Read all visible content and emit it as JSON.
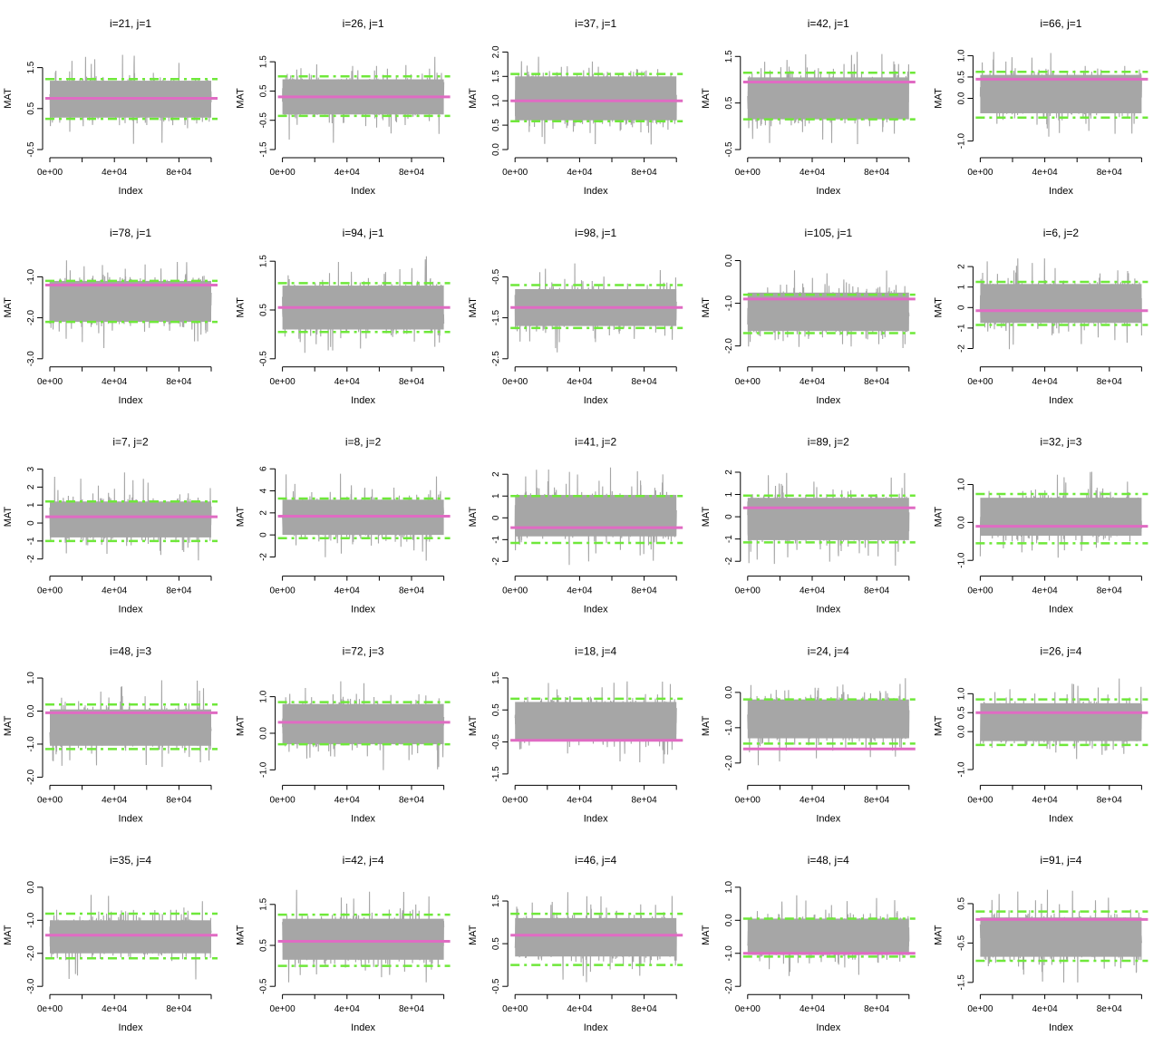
{
  "colors": {
    "trace": "#a6a6a6",
    "mean": "#e06bc3",
    "bound": "#6fe83a",
    "axis": "#000000"
  },
  "chart_data": [
    {
      "type": "line",
      "title": "i=21, j=1",
      "xlabel": "Index",
      "ylabel": "MAT",
      "xlim": [
        0,
        100000
      ],
      "xticks": [
        0,
        40000,
        80000
      ],
      "xtick_labels": [
        "0e+00",
        "4e+04",
        "8e+04"
      ],
      "ylim": [
        -0.5,
        2.0
      ],
      "yticks": [
        -0.5,
        0.5,
        1.5
      ],
      "ytick_labels": [
        "-0.5",
        "0.5",
        "1.5"
      ],
      "trace": {
        "center": 0.73,
        "spread": 0.45,
        "min": -0.4,
        "max": 1.9
      },
      "mean": 0.75,
      "lower": 0.25,
      "upper": 1.22
    },
    {
      "type": "line",
      "title": "i=26, j=1",
      "xlabel": "Index",
      "ylabel": "MAT",
      "xlim": [
        0,
        100000
      ],
      "xticks": [
        0,
        40000,
        80000
      ],
      "xtick_labels": [
        "0e+00",
        "4e+04",
        "8e+04"
      ],
      "ylim": [
        -1.5,
        2.0
      ],
      "yticks": [
        -1.5,
        -0.5,
        0.5,
        1.5
      ],
      "ytick_labels": [
        "-1.5",
        "-0.5",
        "0.5",
        "1.5"
      ],
      "trace": {
        "center": 0.3,
        "spread": 0.6,
        "min": -1.3,
        "max": 1.9
      },
      "mean": 0.3,
      "lower": -0.35,
      "upper": 1.0
    },
    {
      "type": "line",
      "title": "i=37, j=1",
      "xlabel": "Index",
      "ylabel": "MAT",
      "xlim": [
        0,
        100000
      ],
      "xticks": [
        0,
        40000,
        80000
      ],
      "xtick_labels": [
        "0e+00",
        "4e+04",
        "8e+04"
      ],
      "ylim": [
        0.0,
        2.1
      ],
      "yticks": [
        0.0,
        0.5,
        1.0,
        1.5,
        2.0
      ],
      "ytick_labels": [
        "0.0",
        "0.5",
        "1.0",
        "1.5",
        "2.0"
      ],
      "trace": {
        "center": 1.05,
        "spread": 0.45,
        "min": 0.05,
        "max": 2.1
      },
      "mean": 1.0,
      "lower": 0.58,
      "upper": 1.55
    },
    {
      "type": "line",
      "title": "i=42, j=1",
      "xlabel": "Index",
      "ylabel": "MAT",
      "xlim": [
        0,
        100000
      ],
      "xticks": [
        0,
        40000,
        80000
      ],
      "xtick_labels": [
        "0e+00",
        "4e+04",
        "8e+04"
      ],
      "ylim": [
        -0.5,
        1.7
      ],
      "yticks": [
        -0.5,
        0.5,
        1.5
      ],
      "ytick_labels": [
        "-0.5",
        "0.5",
        "1.5"
      ],
      "trace": {
        "center": 0.6,
        "spread": 0.45,
        "min": -0.4,
        "max": 1.6
      },
      "mean": 0.95,
      "lower": 0.15,
      "upper": 1.15
    },
    {
      "type": "line",
      "title": "i=66, j=1",
      "xlabel": "Index",
      "ylabel": "MAT",
      "xlim": [
        0,
        100000
      ],
      "xticks": [
        0,
        40000,
        80000
      ],
      "xtick_labels": [
        "0e+00",
        "4e+04",
        "8e+04"
      ],
      "ylim": [
        -1.2,
        1.2
      ],
      "yticks": [
        -1.0,
        0.0,
        0.5,
        1.0
      ],
      "ytick_labels": [
        "-1.0",
        "0.0",
        "0.5",
        "1.0"
      ],
      "trace": {
        "center": 0.1,
        "spread": 0.45,
        "min": -1.0,
        "max": 1.1
      },
      "mean": 0.45,
      "lower": -0.45,
      "upper": 0.62
    },
    {
      "type": "line",
      "title": "i=78, j=1",
      "xlabel": "Index",
      "ylabel": "MAT",
      "xlim": [
        0,
        100000
      ],
      "xticks": [
        0,
        40000,
        80000
      ],
      "xtick_labels": [
        "0e+00",
        "4e+04",
        "8e+04"
      ],
      "ylim": [
        -3.0,
        -0.5
      ],
      "yticks": [
        -3.0,
        -2.0,
        -1.0
      ],
      "ytick_labels": [
        "-3.0",
        "-2.0",
        "-1.0"
      ],
      "trace": {
        "center": -1.6,
        "spread": 0.5,
        "min": -2.8,
        "max": -0.6
      },
      "mean": -1.2,
      "lower": -2.1,
      "upper": -1.1
    },
    {
      "type": "line",
      "title": "i=94, j=1",
      "xlabel": "Index",
      "ylabel": "MAT",
      "xlim": [
        0,
        100000
      ],
      "xticks": [
        0,
        40000,
        80000
      ],
      "xtick_labels": [
        "0e+00",
        "4e+04",
        "8e+04"
      ],
      "ylim": [
        -0.5,
        1.6
      ],
      "yticks": [
        -0.5,
        0.5,
        1.5
      ],
      "ytick_labels": [
        "-0.5",
        "0.5",
        "1.5"
      ],
      "trace": {
        "center": 0.55,
        "spread": 0.45,
        "min": -0.45,
        "max": 1.6
      },
      "mean": 0.55,
      "lower": 0.05,
      "upper": 1.05
    },
    {
      "type": "line",
      "title": "i=98, j=1",
      "xlabel": "Index",
      "ylabel": "MAT",
      "xlim": [
        0,
        100000
      ],
      "xticks": [
        0,
        40000,
        80000
      ],
      "xtick_labels": [
        "0e+00",
        "4e+04",
        "8e+04"
      ],
      "ylim": [
        -2.5,
        0.0
      ],
      "yticks": [
        -2.5,
        -1.5,
        -0.5
      ],
      "ytick_labels": [
        "-2.5",
        "-1.5",
        "-0.5"
      ],
      "trace": {
        "center": -1.25,
        "spread": 0.45,
        "min": -2.4,
        "max": -0.1
      },
      "mean": -1.25,
      "lower": -1.75,
      "upper": -0.7
    },
    {
      "type": "line",
      "title": "i=105, j=1",
      "xlabel": "Index",
      "ylabel": "MAT",
      "xlim": [
        0,
        100000
      ],
      "xticks": [
        0,
        40000,
        80000
      ],
      "xtick_labels": [
        "0e+00",
        "4e+04",
        "8e+04"
      ],
      "ylim": [
        -2.3,
        0.1
      ],
      "yticks": [
        -2.0,
        -1.0,
        0.0
      ],
      "ytick_labels": [
        "-2.0",
        "-1.0",
        "0.0"
      ],
      "trace": {
        "center": -1.2,
        "spread": 0.45,
        "min": -2.2,
        "max": -0.2
      },
      "mean": -0.9,
      "lower": -1.7,
      "upper": -0.8
    },
    {
      "type": "line",
      "title": "i=6, j=2",
      "xlabel": "Index",
      "ylabel": "MAT",
      "xlim": [
        0,
        100000
      ],
      "xticks": [
        0,
        40000,
        80000
      ],
      "xtick_labels": [
        "0e+00",
        "4e+04",
        "8e+04"
      ],
      "ylim": [
        -2.5,
        2.5
      ],
      "yticks": [
        -2,
        -1,
        0,
        1,
        2
      ],
      "ytick_labels": [
        "-2",
        "-1",
        "0",
        "1",
        "2"
      ],
      "trace": {
        "center": 0.2,
        "spread": 0.95,
        "min": -2.2,
        "max": 2.4
      },
      "mean": -0.15,
      "lower": -0.85,
      "upper": 1.25
    },
    {
      "type": "line",
      "title": "i=7, j=2",
      "xlabel": "Index",
      "ylabel": "MAT",
      "xlim": [
        0,
        100000
      ],
      "xticks": [
        0,
        40000,
        80000
      ],
      "xtick_labels": [
        "0e+00",
        "4e+04",
        "8e+04"
      ],
      "ylim": [
        -2.5,
        3.2
      ],
      "yticks": [
        -2,
        -1,
        0,
        1,
        2,
        3
      ],
      "ytick_labels": [
        "-2",
        "-1",
        "0",
        "1",
        "2",
        "3"
      ],
      "trace": {
        "center": 0.2,
        "spread": 1.0,
        "min": -2.3,
        "max": 3.1
      },
      "mean": 0.35,
      "lower": -1.0,
      "upper": 1.2
    },
    {
      "type": "line",
      "title": "i=8, j=2",
      "xlabel": "Index",
      "ylabel": "MAT",
      "xlim": [
        0,
        100000
      ],
      "xticks": [
        0,
        40000,
        80000
      ],
      "xtick_labels": [
        "0e+00",
        "4e+04",
        "8e+04"
      ],
      "ylim": [
        -3.0,
        6.3
      ],
      "yticks": [
        -2,
        0,
        2,
        4,
        6
      ],
      "ytick_labels": [
        "-2",
        "0",
        "2",
        "4",
        "6"
      ],
      "trace": {
        "center": 1.6,
        "spread": 1.6,
        "min": -2.5,
        "max": 5.7
      },
      "mean": 1.7,
      "lower": -0.3,
      "upper": 3.3
    },
    {
      "type": "line",
      "title": "i=41, j=2",
      "xlabel": "Index",
      "ylabel": "MAT",
      "xlim": [
        0,
        100000
      ],
      "xticks": [
        0,
        40000,
        80000
      ],
      "xtick_labels": [
        "0e+00",
        "4e+04",
        "8e+04"
      ],
      "ylim": [
        -2.3,
        2.4
      ],
      "yticks": [
        -2,
        -1,
        0,
        1,
        2
      ],
      "ytick_labels": [
        "-2",
        "-1",
        "0",
        "1",
        "2"
      ],
      "trace": {
        "center": 0.1,
        "spread": 0.95,
        "min": -2.2,
        "max": 2.5
      },
      "mean": -0.45,
      "lower": -1.15,
      "upper": 1.0
    },
    {
      "type": "line",
      "title": "i=89, j=2",
      "xlabel": "Index",
      "ylabel": "MAT",
      "xlim": [
        0,
        100000
      ],
      "xticks": [
        0,
        40000,
        80000
      ],
      "xtick_labels": [
        "0e+00",
        "4e+04",
        "8e+04"
      ],
      "ylim": [
        -2.3,
        2.3
      ],
      "yticks": [
        -2,
        -1,
        0,
        1,
        2
      ],
      "ytick_labels": [
        "-2",
        "-1",
        "0",
        "1",
        "2"
      ],
      "trace": {
        "center": -0.1,
        "spread": 0.95,
        "min": -2.2,
        "max": 2.1
      },
      "mean": 0.4,
      "lower": -1.15,
      "upper": 0.95
    },
    {
      "type": "line",
      "title": "i=32, j=3",
      "xlabel": "Index",
      "ylabel": "MAT",
      "xlim": [
        0,
        100000
      ],
      "xticks": [
        0,
        40000,
        80000
      ],
      "xtick_labels": [
        "0e+00",
        "4e+04",
        "8e+04"
      ],
      "ylim": [
        -1.2,
        1.5
      ],
      "yticks": [
        -1.0,
        0.0,
        1.0
      ],
      "ytick_labels": [
        "-1.0",
        "0.0",
        "1.0"
      ],
      "trace": {
        "center": 0.15,
        "spread": 0.5,
        "min": -1.1,
        "max": 1.4
      },
      "mean": -0.1,
      "lower": -0.55,
      "upper": 0.75
    },
    {
      "type": "line",
      "title": "i=48, j=3",
      "xlabel": "Index",
      "ylabel": "MAT",
      "xlim": [
        0,
        100000
      ],
      "xticks": [
        0,
        40000,
        80000
      ],
      "xtick_labels": [
        "0e+00",
        "4e+04",
        "8e+04"
      ],
      "ylim": [
        -2.0,
        1.1
      ],
      "yticks": [
        -2.0,
        -1.0,
        0.0,
        1.0
      ],
      "ytick_labels": [
        "-2.0",
        "-1.0",
        "0.0",
        "1.0"
      ],
      "trace": {
        "center": -0.5,
        "spread": 0.55,
        "min": -1.85,
        "max": 1.0
      },
      "mean": -0.05,
      "lower": -1.15,
      "upper": 0.2
    },
    {
      "type": "line",
      "title": "i=72, j=3",
      "xlabel": "Index",
      "ylabel": "MAT",
      "xlim": [
        0,
        100000
      ],
      "xticks": [
        0,
        40000,
        80000
      ],
      "xtick_labels": [
        "0e+00",
        "4e+04",
        "8e+04"
      ],
      "ylim": [
        -1.2,
        1.6
      ],
      "yticks": [
        -1.0,
        0.0,
        1.0
      ],
      "ytick_labels": [
        "-1.0",
        "0.0",
        "1.0"
      ],
      "trace": {
        "center": 0.25,
        "spread": 0.55,
        "min": -1.1,
        "max": 1.5
      },
      "mean": 0.3,
      "lower": -0.3,
      "upper": 0.85
    },
    {
      "type": "line",
      "title": "i=18, j=4",
      "xlabel": "Index",
      "ylabel": "MAT",
      "xlim": [
        0,
        100000
      ],
      "xticks": [
        0,
        40000,
        80000
      ],
      "xtick_labels": [
        "0e+00",
        "4e+04",
        "8e+04"
      ],
      "ylim": [
        -1.6,
        1.6
      ],
      "yticks": [
        -1.5,
        -0.5,
        0.5,
        1.5
      ],
      "ytick_labels": [
        "-1.5",
        "-0.5",
        "0.5",
        "1.5"
      ],
      "trace": {
        "center": 0.15,
        "spread": 0.6,
        "min": -1.4,
        "max": 1.5
      },
      "mean": -0.45,
      "lower": -0.45,
      "upper": 0.85
    },
    {
      "type": "line",
      "title": "i=24, j=4",
      "xlabel": "Index",
      "ylabel": "MAT",
      "xlim": [
        0,
        100000
      ],
      "xticks": [
        0,
        40000,
        80000
      ],
      "xtick_labels": [
        "0e+00",
        "4e+04",
        "8e+04"
      ],
      "ylim": [
        -2.4,
        0.5
      ],
      "yticks": [
        -2.0,
        -1.0,
        0.0
      ],
      "ytick_labels": [
        "-2.0",
        "-1.0",
        "0.0"
      ],
      "trace": {
        "center": -0.75,
        "spread": 0.55,
        "min": -2.2,
        "max": 0.4
      },
      "mean": -1.6,
      "lower": -1.45,
      "upper": -0.2
    },
    {
      "type": "line",
      "title": "i=26, j=4",
      "xlabel": "Index",
      "ylabel": "MAT",
      "xlim": [
        0,
        100000
      ],
      "xticks": [
        0,
        40000,
        80000
      ],
      "xtick_labels": [
        "0e+00",
        "4e+04",
        "8e+04"
      ],
      "ylim": [
        -1.2,
        1.5
      ],
      "yticks": [
        -1.0,
        0.0,
        0.5,
        1.0
      ],
      "ytick_labels": [
        "-1.0",
        "0.0",
        "0.5",
        "1.0"
      ],
      "trace": {
        "center": 0.25,
        "spread": 0.5,
        "min": -1.1,
        "max": 1.4
      },
      "mean": 0.5,
      "lower": -0.35,
      "upper": 0.85
    },
    {
      "type": "line",
      "title": "i=35, j=4",
      "xlabel": "Index",
      "ylabel": "MAT",
      "xlim": [
        0,
        100000
      ],
      "xticks": [
        0,
        40000,
        80000
      ],
      "xtick_labels": [
        "0e+00",
        "4e+04",
        "8e+04"
      ],
      "ylim": [
        -3.0,
        0.1
      ],
      "yticks": [
        -3.0,
        -2.0,
        -1.0,
        0.0
      ],
      "ytick_labels": [
        "-3.0",
        "-2.0",
        "-1.0",
        "0.0"
      ],
      "trace": {
        "center": -1.5,
        "spread": 0.5,
        "min": -2.8,
        "max": 0.0
      },
      "mean": -1.45,
      "lower": -2.15,
      "upper": -0.8
    },
    {
      "type": "line",
      "title": "i=42, j=4",
      "xlabel": "Index",
      "ylabel": "MAT",
      "xlim": [
        0,
        100000
      ],
      "xticks": [
        0,
        40000,
        80000
      ],
      "xtick_labels": [
        "0e+00",
        "4e+04",
        "8e+04"
      ],
      "ylim": [
        -0.5,
        2.0
      ],
      "yticks": [
        -0.5,
        0.5,
        1.5
      ],
      "ytick_labels": [
        "-0.5",
        "0.5",
        "1.5"
      ],
      "trace": {
        "center": 0.65,
        "spread": 0.5,
        "min": -0.4,
        "max": 1.9
      },
      "mean": 0.6,
      "lower": 0.0,
      "upper": 1.25
    },
    {
      "type": "line",
      "title": "i=46, j=4",
      "xlabel": "Index",
      "ylabel": "MAT",
      "xlim": [
        0,
        100000
      ],
      "xticks": [
        0,
        40000,
        80000
      ],
      "xtick_labels": [
        "0e+00",
        "4e+04",
        "8e+04"
      ],
      "ylim": [
        -0.5,
        1.9
      ],
      "yticks": [
        -0.5,
        0.5,
        1.5
      ],
      "ytick_labels": [
        "-0.5",
        "0.5",
        "1.5"
      ],
      "trace": {
        "center": 0.65,
        "spread": 0.45,
        "min": -0.4,
        "max": 1.85
      },
      "mean": 0.7,
      "lower": 0.0,
      "upper": 1.2
    },
    {
      "type": "line",
      "title": "i=48, j=4",
      "xlabel": "Index",
      "ylabel": "MAT",
      "xlim": [
        0,
        100000
      ],
      "xticks": [
        0,
        40000,
        80000
      ],
      "xtick_labels": [
        "0e+00",
        "4e+04",
        "8e+04"
      ],
      "ylim": [
        -2.0,
        1.1
      ],
      "yticks": [
        -2.0,
        -1.0,
        0.0,
        1.0
      ],
      "ytick_labels": [
        "-2.0",
        "-1.0",
        "0.0",
        "1.0"
      ],
      "trace": {
        "center": -0.5,
        "spread": 0.55,
        "min": -1.85,
        "max": 0.9
      },
      "mean": -1.0,
      "lower": -1.1,
      "upper": 0.05
    },
    {
      "type": "line",
      "title": "i=91, j=4",
      "xlabel": "Index",
      "ylabel": "MAT",
      "xlim": [
        0,
        100000
      ],
      "xticks": [
        0,
        40000,
        80000
      ],
      "xtick_labels": [
        "0e+00",
        "4e+04",
        "8e+04"
      ],
      "ylim": [
        -1.6,
        1.0
      ],
      "yticks": [
        -1.5,
        -0.5,
        0.5
      ],
      "ytick_labels": [
        "-1.5",
        "-0.5",
        "0.5"
      ],
      "trace": {
        "center": -0.35,
        "spread": 0.5,
        "min": -1.5,
        "max": 0.9
      },
      "mean": 0.1,
      "lower": -0.95,
      "upper": 0.3
    }
  ]
}
